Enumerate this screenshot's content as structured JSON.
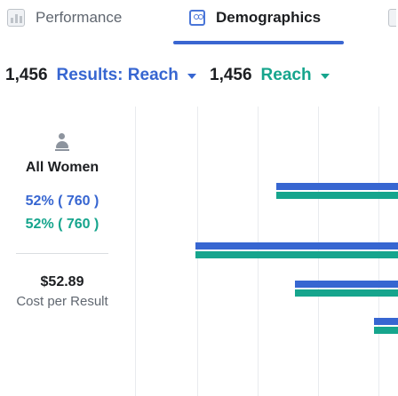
{
  "tabs": [
    {
      "label": "Performance",
      "icon": "bar-chart-icon",
      "active": false
    },
    {
      "label": "Demographics",
      "icon": "people-icon",
      "active": true
    }
  ],
  "metrics": {
    "primary": {
      "value": "1,456",
      "selector_label": "Results: Reach",
      "color": "#3766d1"
    },
    "secondary": {
      "value": "1,456",
      "selector_label": "Reach",
      "color": "#16a58d"
    }
  },
  "segment": {
    "icon": "person-icon",
    "title": "All Women",
    "primary_share": "52% ( 760 )",
    "secondary_share": "52% ( 760 )",
    "cost_value": "$52.89",
    "cost_label": "Cost per Result"
  },
  "chart_data": {
    "type": "bar",
    "orientation": "horizontal",
    "series": [
      {
        "values": [
          0.6,
          1.0,
          0.51,
          0.12
        ],
        "color": "#3766d1"
      },
      {
        "values": [
          0.6,
          1.0,
          0.51,
          0.12
        ],
        "color": "#16a58d"
      }
    ],
    "gridlines": 5
  },
  "colors": {
    "primary": "#3766d1",
    "secondary": "#16a58d",
    "accent": "#3a66d1"
  }
}
